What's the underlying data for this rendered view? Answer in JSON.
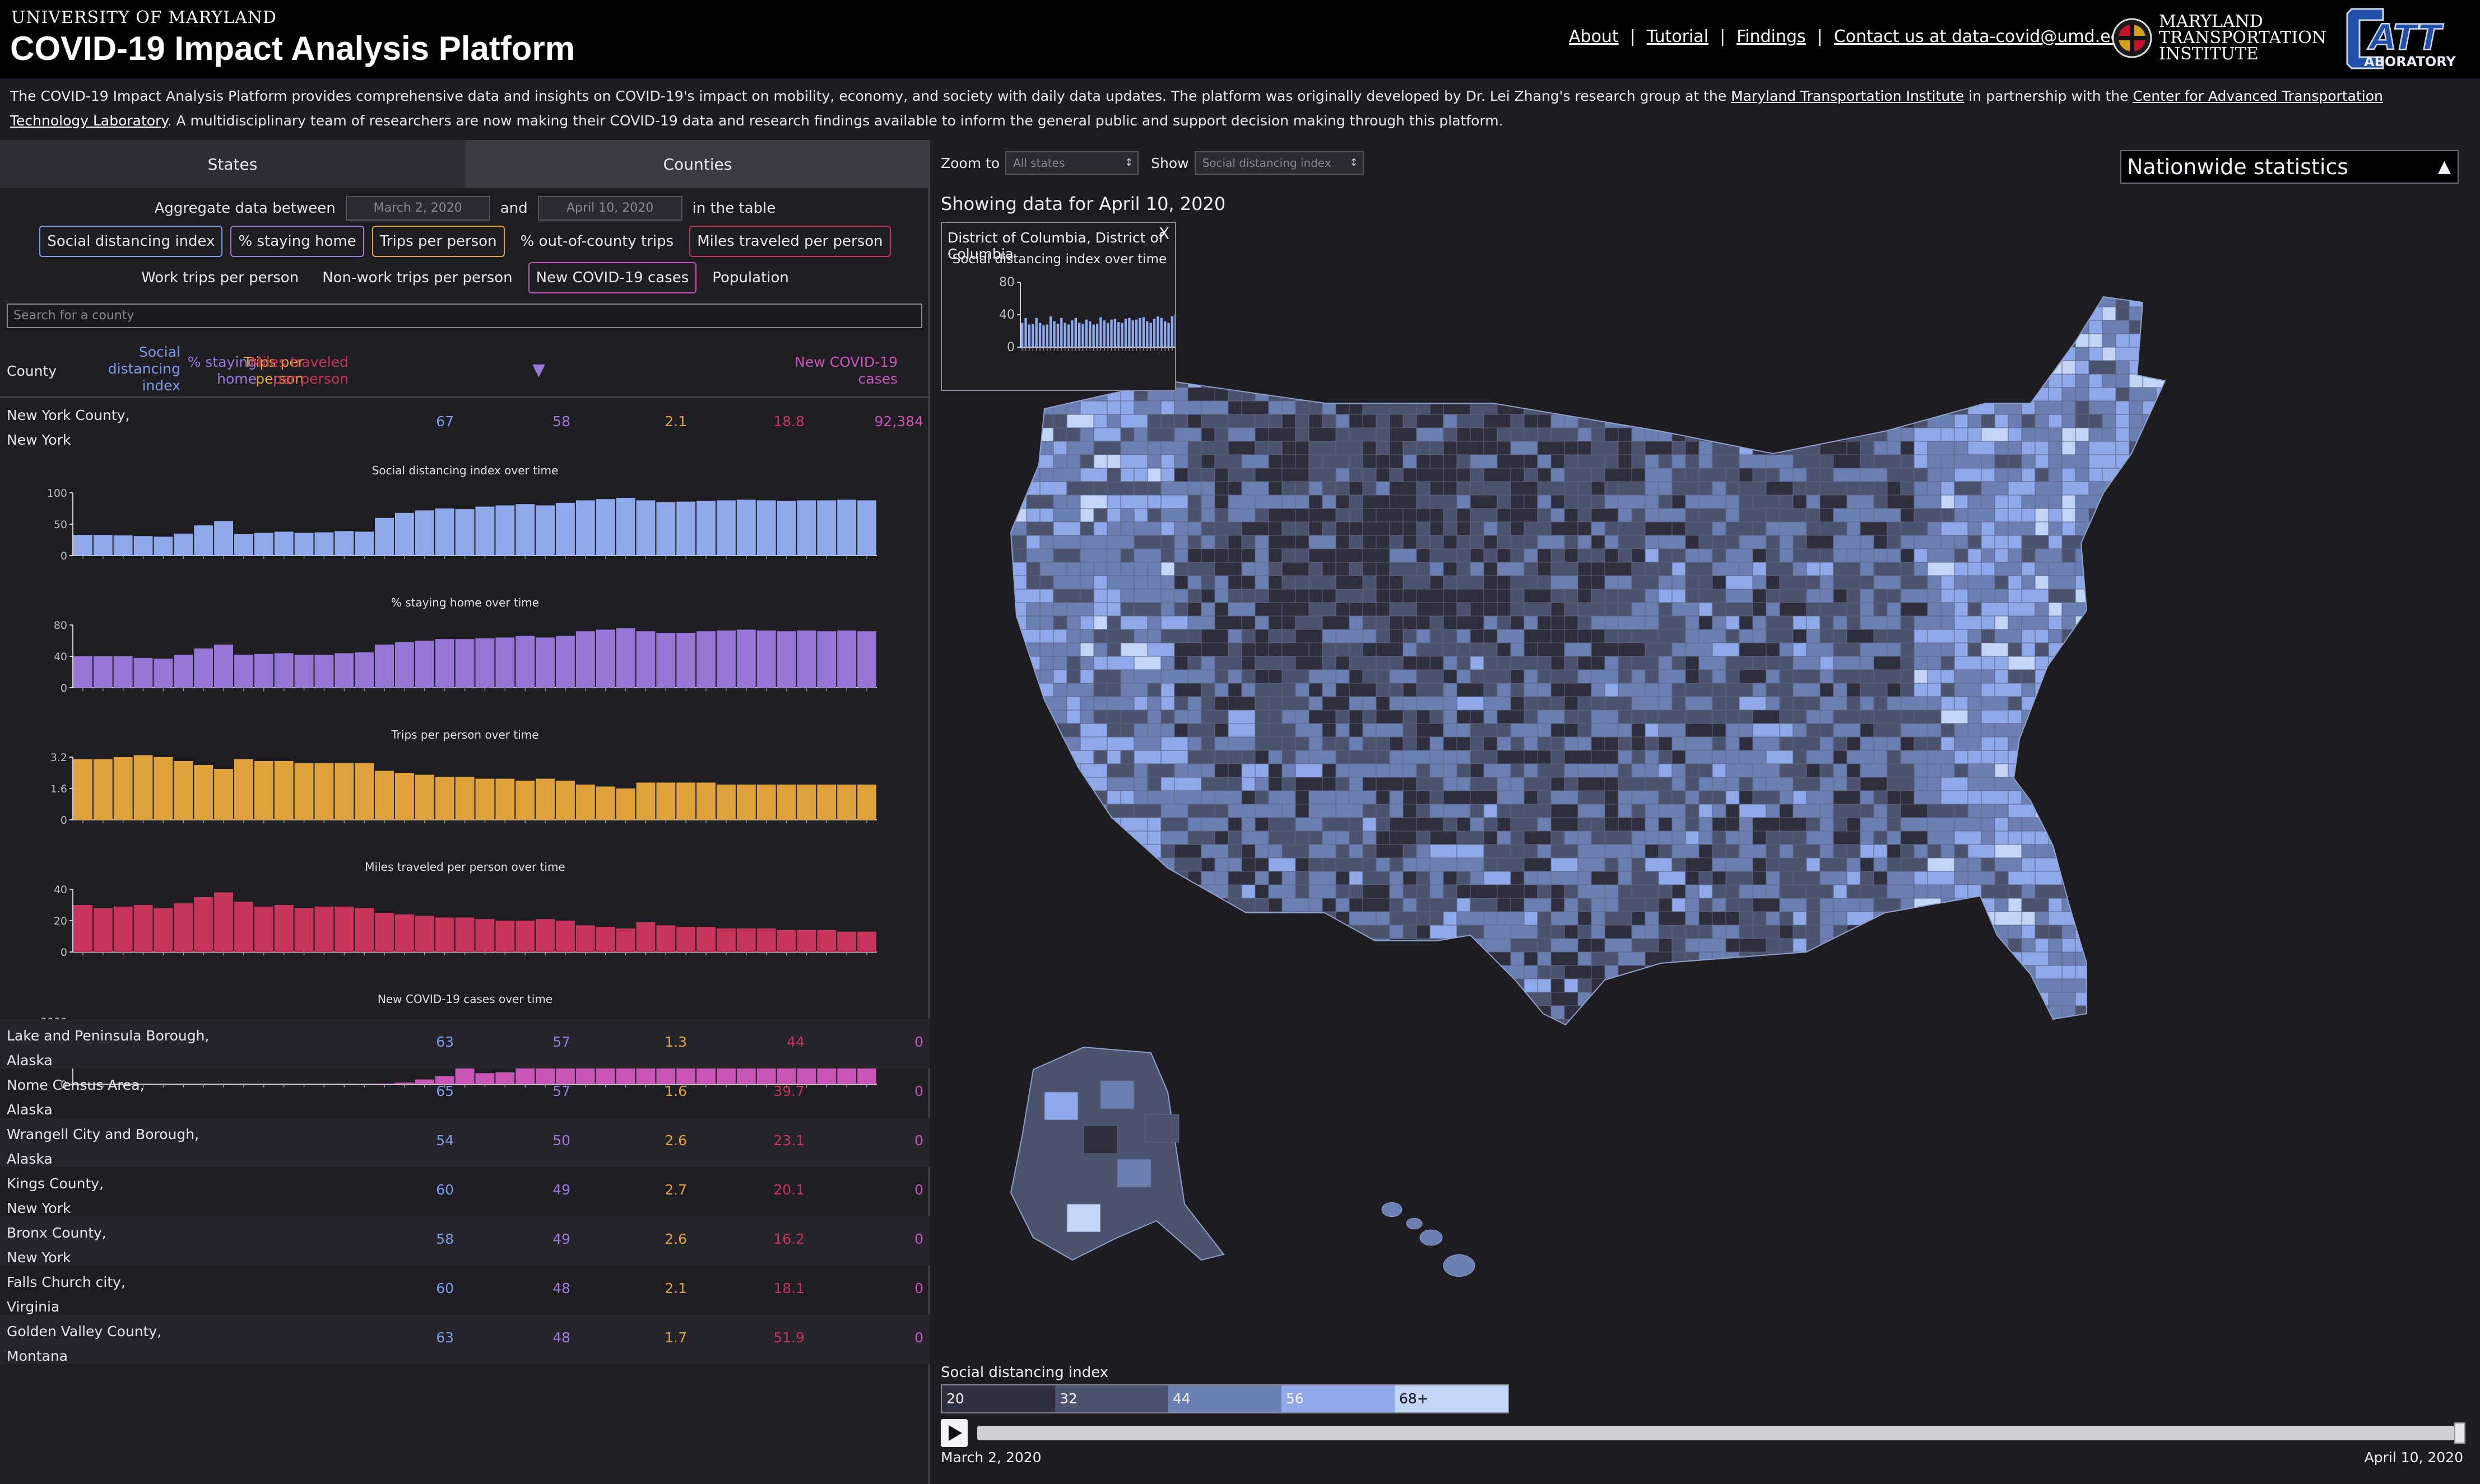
{
  "header": {
    "university": "UNIVERSITY OF MARYLAND",
    "title": "COVID-19 Impact Analysis Platform",
    "nav": [
      "About",
      "Tutorial",
      "Findings",
      "Contact us at data-covid@umd.edu"
    ],
    "mti_lines": [
      "MARYLAND",
      "TRANSPORTATION",
      "INSTITUTE"
    ],
    "catt_logo": "CATT LABORATORY"
  },
  "description": {
    "part1": "The COVID-19 Impact Analysis Platform provides comprehensive data and insights on COVID-19's impact on mobility, economy, and society with daily data updates. The platform was originally developed by Dr. Lei Zhang's research group at the ",
    "link1": "Maryland Transportation Institute",
    "part2": " in partnership with the ",
    "link2": "Center for Advanced Transportation Technology Laboratory",
    "part3": ". A multidisciplinary team of researchers are now making their COVID-19 data and research findings available to inform the general public and support decision making through this platform."
  },
  "left": {
    "tabs": [
      "States",
      "Counties"
    ],
    "aggregate": {
      "label": "Aggregate data between",
      "start": "March 2, 2020",
      "and": "and",
      "end": "April 10, 2020",
      "suffix": "in the table"
    },
    "metrics_row1": [
      "Social distancing index",
      "% staying home",
      "Trips per person",
      "% out-of-county trips",
      "Miles traveled per person"
    ],
    "metrics_row2": [
      "Work trips per person",
      "Non-work trips per person",
      "New COVID-19 cases",
      "Population"
    ],
    "search_placeholder": "Search for a county",
    "table": {
      "headers": {
        "county": "County",
        "sdi": [
          "Social",
          "distancing",
          "index"
        ],
        "stay": [
          "% staying",
          "home"
        ],
        "sort_icon": "▼",
        "trips": [
          "Trips per",
          "person"
        ],
        "miles": [
          "Miles traveled",
          "per person"
        ],
        "cases": [
          "New COVID-19",
          "cases"
        ]
      },
      "expanded_row": {
        "county": [
          "New York County,",
          "New York"
        ],
        "sdi": "67",
        "stay": "58",
        "trips": "2.1",
        "miles": "18.8",
        "cases": "92,384"
      },
      "rows": [
        {
          "county": [
            "Lake and Peninsula Borough,",
            "Alaska"
          ],
          "sdi": "63",
          "stay": "57",
          "trips": "1.3",
          "miles": "44",
          "cases": "0"
        },
        {
          "county": [
            "Nome Census Area,",
            "Alaska"
          ],
          "sdi": "65",
          "stay": "57",
          "trips": "1.6",
          "miles": "39.7",
          "cases": "0"
        },
        {
          "county": [
            "Wrangell City and Borough,",
            "Alaska"
          ],
          "sdi": "54",
          "stay": "50",
          "trips": "2.6",
          "miles": "23.1",
          "cases": "0"
        },
        {
          "county": [
            "Kings County,",
            "New York"
          ],
          "sdi": "60",
          "stay": "49",
          "trips": "2.7",
          "miles": "20.1",
          "cases": "0"
        },
        {
          "county": [
            "Bronx County,",
            "New York"
          ],
          "sdi": "58",
          "stay": "49",
          "trips": "2.6",
          "miles": "16.2",
          "cases": "0"
        },
        {
          "county": [
            "Falls Church city,",
            "Virginia"
          ],
          "sdi": "60",
          "stay": "48",
          "trips": "2.1",
          "miles": "18.1",
          "cases": "0"
        },
        {
          "county": [
            "Golden Valley County,",
            "Montana"
          ],
          "sdi": "63",
          "stay": "48",
          "trips": "1.7",
          "miles": "51.9",
          "cases": "0"
        }
      ]
    }
  },
  "chart_data": [
    {
      "type": "bar",
      "title": "Social distancing index over time",
      "color": "#8fa8ea",
      "ylim": [
        0,
        100
      ],
      "yticks": [
        "100",
        "50",
        "0"
      ],
      "values": [
        33,
        33,
        32,
        31,
        30,
        35,
        48,
        55,
        34,
        36,
        38,
        36,
        37,
        39,
        38,
        60,
        68,
        72,
        75,
        74,
        78,
        80,
        82,
        80,
        84,
        88,
        90,
        92,
        88,
        85,
        86,
        87,
        88,
        89,
        88,
        87,
        88,
        88,
        89,
        88
      ]
    },
    {
      "type": "bar",
      "title": "% staying home over time",
      "color": "#9575d6",
      "ylim": [
        0,
        80
      ],
      "yticks": [
        "80",
        "40",
        "0"
      ],
      "values": [
        40,
        40,
        40,
        38,
        37,
        42,
        50,
        55,
        42,
        43,
        44,
        42,
        42,
        44,
        45,
        55,
        58,
        60,
        62,
        62,
        63,
        64,
        66,
        64,
        66,
        72,
        74,
        76,
        72,
        70,
        70,
        72,
        73,
        74,
        73,
        72,
        73,
        72,
        73,
        72
      ]
    },
    {
      "type": "bar",
      "title": "Trips per person over time",
      "color": "#e0a23a",
      "ylim": [
        0,
        3.2
      ],
      "yticks": [
        "3.2",
        "1.6",
        "0"
      ],
      "values": [
        3.1,
        3.1,
        3.2,
        3.3,
        3.2,
        3.0,
        2.8,
        2.6,
        3.1,
        3.0,
        3.0,
        2.9,
        2.9,
        2.9,
        2.9,
        2.5,
        2.4,
        2.3,
        2.2,
        2.2,
        2.1,
        2.1,
        2.0,
        2.1,
        2.0,
        1.8,
        1.7,
        1.6,
        1.9,
        1.9,
        1.9,
        1.9,
        1.8,
        1.8,
        1.8,
        1.8,
        1.8,
        1.8,
        1.8,
        1.8
      ]
    },
    {
      "type": "bar",
      "title": "Miles traveled per person over time",
      "color": "#c7355a",
      "ylim": [
        0,
        40
      ],
      "yticks": [
        "40",
        "20",
        "0"
      ],
      "values": [
        30,
        28,
        29,
        30,
        28,
        31,
        35,
        38,
        32,
        29,
        30,
        28,
        29,
        29,
        28,
        25,
        24,
        23,
        22,
        22,
        21,
        20,
        20,
        21,
        20,
        17,
        16,
        15,
        19,
        17,
        16,
        16,
        15,
        15,
        15,
        14,
        14,
        14,
        13,
        13
      ]
    },
    {
      "type": "bar",
      "title": "New COVID-19 cases over time",
      "color": "#c955b8",
      "ylim": [
        0,
        8000
      ],
      "yticks": [
        "8000",
        "4000",
        "0"
      ],
      "values": [
        0,
        0,
        0,
        0,
        0,
        0,
        0,
        0,
        0,
        0,
        0,
        0,
        0,
        0,
        20,
        80,
        200,
        600,
        1000,
        2100,
        1400,
        1500,
        2800,
        2000,
        3000,
        2800,
        2900,
        4500,
        4200,
        4500,
        4800,
        4300,
        5600,
        6200,
        5100,
        5300,
        5400,
        5200,
        6400,
        6000
      ]
    },
    {
      "type": "bar",
      "title": "Social distancing index over time",
      "color": "#8fa8ea",
      "ylim": [
        0,
        80
      ],
      "yticks": [
        "80",
        "40",
        "0"
      ],
      "values": [
        30,
        36,
        28,
        29,
        36,
        30,
        27,
        28,
        38,
        32,
        29,
        36,
        30,
        28,
        33,
        36,
        30,
        29,
        34,
        32,
        28,
        29,
        37,
        33,
        30,
        34,
        35,
        31,
        30,
        35,
        36,
        33,
        34,
        36,
        37,
        32,
        30,
        35,
        38,
        36,
        32,
        30,
        38,
        40,
        36,
        46,
        60,
        58,
        55,
        54,
        62,
        72,
        75,
        78,
        77,
        74,
        78,
        80,
        80,
        79,
        78,
        76,
        72,
        70
      ]
    }
  ],
  "right": {
    "zoom_label": "Zoom to",
    "zoom_value": "All states",
    "show_label": "Show",
    "show_value": "Social distancing index",
    "showing": "Showing data for April 10, 2020",
    "nationwide": "Nationwide statistics",
    "nationwide_arrow": "▲",
    "tooltip": {
      "title": "District of Columbia, District of Columbia",
      "subtitle": "Social distancing index over time",
      "close": "X"
    },
    "legend": {
      "title": "Social distancing index",
      "bins": [
        "20",
        "32",
        "44",
        "56",
        "68+"
      ],
      "colors": [
        "#2e2e3d",
        "#4a526e",
        "#6b7fb3",
        "#8fa8ea",
        "#c4d6f7"
      ]
    },
    "timeline": {
      "start": "March 2, 2020",
      "end": "April 10, 2020",
      "progress": 1.0
    }
  },
  "colors": {
    "background": "#1c1c21",
    "header": "#000000",
    "sdi": "#7d9de6",
    "stay": "#9a7ad8",
    "trips": "#e0a23a",
    "miles": "#c7355a",
    "cases": "#c955b8"
  }
}
